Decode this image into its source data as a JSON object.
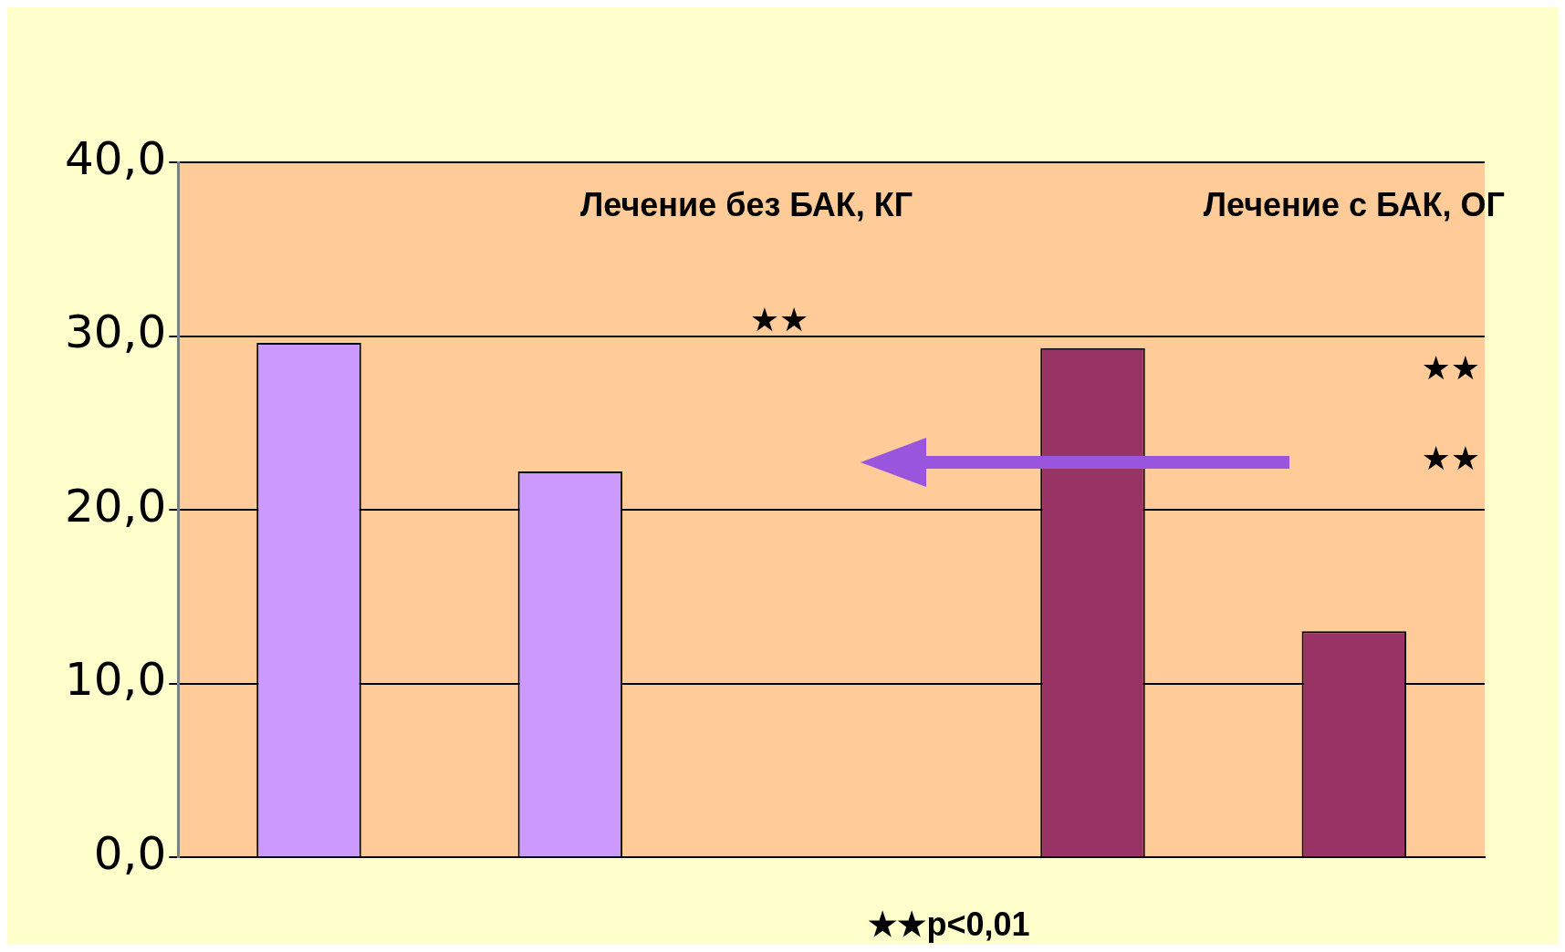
{
  "chart_data": {
    "type": "bar",
    "categories": [
      null,
      null,
      null,
      null,
      null
    ],
    "series": [
      {
        "color": "#cc99ff",
        "values": [
          29.6,
          22.2,
          null,
          null,
          null
        ]
      },
      {
        "color": "#993366",
        "values": [
          null,
          null,
          null,
          29.3,
          13.0
        ]
      }
    ],
    "ylim": [
      0,
      40
    ],
    "yticks": [
      {
        "value": 0,
        "label": "0,0"
      },
      {
        "value": 10,
        "label": "10,0"
      },
      {
        "value": 20,
        "label": "20,0"
      },
      {
        "value": 30,
        "label": "30,0"
      },
      {
        "value": 40,
        "label": "40,0"
      }
    ],
    "grid": "y",
    "legend": false,
    "annotations": [
      "Лечение без БАК, КГ",
      "Лечение с БАК, ОГ",
      "★★",
      "★★",
      "★★",
      "★★p<0,01"
    ]
  }
}
